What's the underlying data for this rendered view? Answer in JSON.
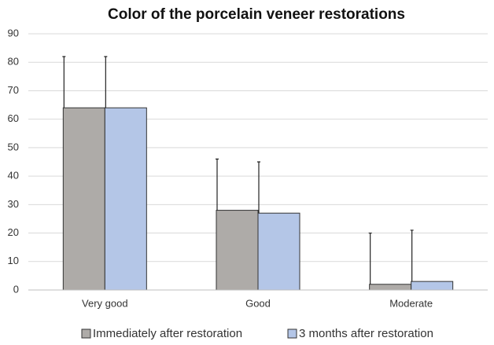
{
  "chart_data": {
    "type": "bar",
    "title": "Color of the porcelain veneer restorations",
    "categories": [
      "Very good",
      "Good",
      "Moderate"
    ],
    "series": [
      {
        "name": "Immediately after restoration",
        "color": "#aeaba8",
        "values": [
          64,
          28,
          2
        ],
        "errors": [
          18,
          18,
          18
        ]
      },
      {
        "name": "3 months after restoration",
        "color": "#b4c6e7",
        "values": [
          64,
          27,
          3
        ],
        "errors": [
          18,
          18,
          18
        ]
      }
    ],
    "ylim": [
      0,
      90
    ],
    "yticks": [
      0,
      10,
      20,
      30,
      40,
      50,
      60,
      70,
      80,
      90
    ],
    "grid": true,
    "legend": "bottom"
  }
}
